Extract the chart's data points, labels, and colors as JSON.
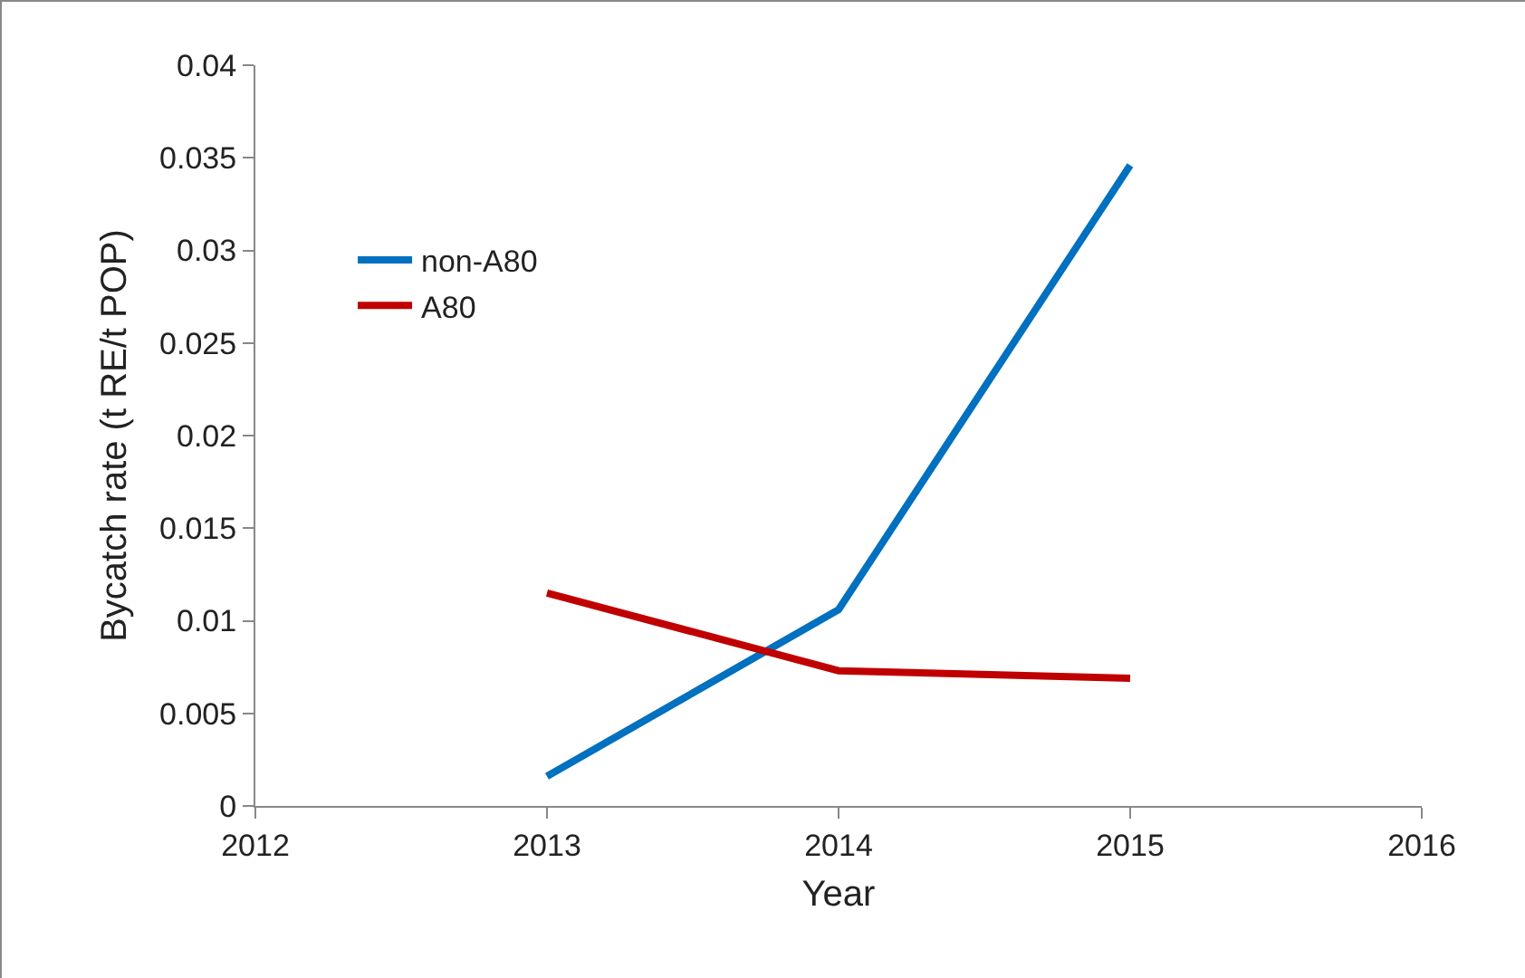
{
  "chart_data": {
    "type": "line",
    "xlabel": "Year",
    "ylabel": "Bycatch rate (t RE/t POP)",
    "x": [
      2013,
      2014,
      2015
    ],
    "series": [
      {
        "name": "non-A80",
        "color": "#0070c0",
        "values": [
          0.0016,
          0.0106,
          0.0346
        ]
      },
      {
        "name": "A80",
        "color": "#c00000",
        "values": [
          0.0115,
          0.0073,
          0.0069
        ]
      }
    ],
    "xlim": [
      2012,
      2016
    ],
    "xticks": [
      2012,
      2013,
      2014,
      2015,
      2016
    ],
    "ylim": [
      0,
      0.04
    ],
    "yticks": [
      0,
      0.005,
      0.01,
      0.015,
      0.02,
      0.025,
      0.03,
      0.035,
      0.04
    ],
    "grid": false,
    "legend": "top left",
    "marker": "none",
    "line_style": "solid"
  }
}
